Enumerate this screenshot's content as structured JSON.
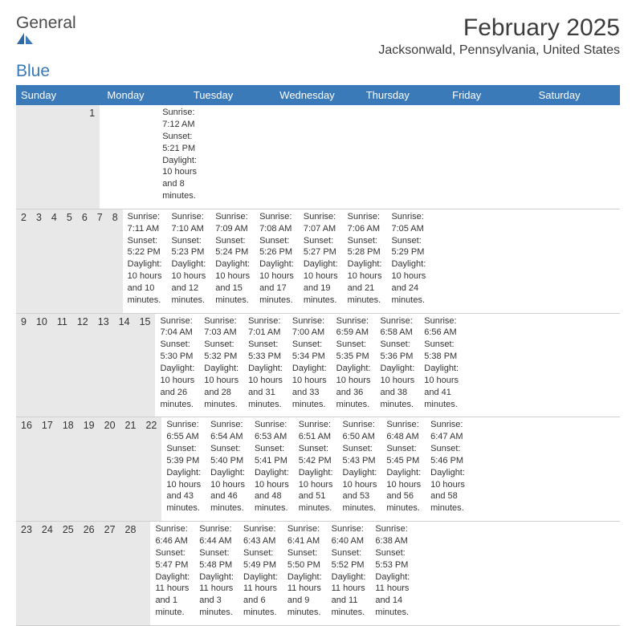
{
  "logo": {
    "text1": "General",
    "text2": "Blue"
  },
  "title": "February 2025",
  "location": "Jacksonwald, Pennsylvania, United States",
  "colors": {
    "header_bg": "#3a7ab8",
    "header_text": "#ffffff",
    "daynum_bg": "#e8e8e8",
    "border": "#cfcfcf",
    "text": "#333333",
    "logo_gray": "#4a4a4a",
    "logo_blue": "#3a7ab8"
  },
  "fonts": {
    "title_size_pt": 22,
    "location_size_pt": 12,
    "weekday_size_pt": 10,
    "daynum_size_pt": 9,
    "body_size_pt": 8
  },
  "weekdays": [
    "Sunday",
    "Monday",
    "Tuesday",
    "Wednesday",
    "Thursday",
    "Friday",
    "Saturday"
  ],
  "weeks": [
    [
      {
        "num": "",
        "lines": []
      },
      {
        "num": "",
        "lines": []
      },
      {
        "num": "",
        "lines": []
      },
      {
        "num": "",
        "lines": []
      },
      {
        "num": "",
        "lines": []
      },
      {
        "num": "",
        "lines": []
      },
      {
        "num": "1",
        "lines": [
          "Sunrise: 7:12 AM",
          "Sunset: 5:21 PM",
          "Daylight: 10 hours and 8 minutes."
        ]
      }
    ],
    [
      {
        "num": "2",
        "lines": [
          "Sunrise: 7:11 AM",
          "Sunset: 5:22 PM",
          "Daylight: 10 hours and 10 minutes."
        ]
      },
      {
        "num": "3",
        "lines": [
          "Sunrise: 7:10 AM",
          "Sunset: 5:23 PM",
          "Daylight: 10 hours and 12 minutes."
        ]
      },
      {
        "num": "4",
        "lines": [
          "Sunrise: 7:09 AM",
          "Sunset: 5:24 PM",
          "Daylight: 10 hours and 15 minutes."
        ]
      },
      {
        "num": "5",
        "lines": [
          "Sunrise: 7:08 AM",
          "Sunset: 5:26 PM",
          "Daylight: 10 hours and 17 minutes."
        ]
      },
      {
        "num": "6",
        "lines": [
          "Sunrise: 7:07 AM",
          "Sunset: 5:27 PM",
          "Daylight: 10 hours and 19 minutes."
        ]
      },
      {
        "num": "7",
        "lines": [
          "Sunrise: 7:06 AM",
          "Sunset: 5:28 PM",
          "Daylight: 10 hours and 21 minutes."
        ]
      },
      {
        "num": "8",
        "lines": [
          "Sunrise: 7:05 AM",
          "Sunset: 5:29 PM",
          "Daylight: 10 hours and 24 minutes."
        ]
      }
    ],
    [
      {
        "num": "9",
        "lines": [
          "Sunrise: 7:04 AM",
          "Sunset: 5:30 PM",
          "Daylight: 10 hours and 26 minutes."
        ]
      },
      {
        "num": "10",
        "lines": [
          "Sunrise: 7:03 AM",
          "Sunset: 5:32 PM",
          "Daylight: 10 hours and 28 minutes."
        ]
      },
      {
        "num": "11",
        "lines": [
          "Sunrise: 7:01 AM",
          "Sunset: 5:33 PM",
          "Daylight: 10 hours and 31 minutes."
        ]
      },
      {
        "num": "12",
        "lines": [
          "Sunrise: 7:00 AM",
          "Sunset: 5:34 PM",
          "Daylight: 10 hours and 33 minutes."
        ]
      },
      {
        "num": "13",
        "lines": [
          "Sunrise: 6:59 AM",
          "Sunset: 5:35 PM",
          "Daylight: 10 hours and 36 minutes."
        ]
      },
      {
        "num": "14",
        "lines": [
          "Sunrise: 6:58 AM",
          "Sunset: 5:36 PM",
          "Daylight: 10 hours and 38 minutes."
        ]
      },
      {
        "num": "15",
        "lines": [
          "Sunrise: 6:56 AM",
          "Sunset: 5:38 PM",
          "Daylight: 10 hours and 41 minutes."
        ]
      }
    ],
    [
      {
        "num": "16",
        "lines": [
          "Sunrise: 6:55 AM",
          "Sunset: 5:39 PM",
          "Daylight: 10 hours and 43 minutes."
        ]
      },
      {
        "num": "17",
        "lines": [
          "Sunrise: 6:54 AM",
          "Sunset: 5:40 PM",
          "Daylight: 10 hours and 46 minutes."
        ]
      },
      {
        "num": "18",
        "lines": [
          "Sunrise: 6:53 AM",
          "Sunset: 5:41 PM",
          "Daylight: 10 hours and 48 minutes."
        ]
      },
      {
        "num": "19",
        "lines": [
          "Sunrise: 6:51 AM",
          "Sunset: 5:42 PM",
          "Daylight: 10 hours and 51 minutes."
        ]
      },
      {
        "num": "20",
        "lines": [
          "Sunrise: 6:50 AM",
          "Sunset: 5:43 PM",
          "Daylight: 10 hours and 53 minutes."
        ]
      },
      {
        "num": "21",
        "lines": [
          "Sunrise: 6:48 AM",
          "Sunset: 5:45 PM",
          "Daylight: 10 hours and 56 minutes."
        ]
      },
      {
        "num": "22",
        "lines": [
          "Sunrise: 6:47 AM",
          "Sunset: 5:46 PM",
          "Daylight: 10 hours and 58 minutes."
        ]
      }
    ],
    [
      {
        "num": "23",
        "lines": [
          "Sunrise: 6:46 AM",
          "Sunset: 5:47 PM",
          "Daylight: 11 hours and 1 minute."
        ]
      },
      {
        "num": "24",
        "lines": [
          "Sunrise: 6:44 AM",
          "Sunset: 5:48 PM",
          "Daylight: 11 hours and 3 minutes."
        ]
      },
      {
        "num": "25",
        "lines": [
          "Sunrise: 6:43 AM",
          "Sunset: 5:49 PM",
          "Daylight: 11 hours and 6 minutes."
        ]
      },
      {
        "num": "26",
        "lines": [
          "Sunrise: 6:41 AM",
          "Sunset: 5:50 PM",
          "Daylight: 11 hours and 9 minutes."
        ]
      },
      {
        "num": "27",
        "lines": [
          "Sunrise: 6:40 AM",
          "Sunset: 5:52 PM",
          "Daylight: 11 hours and 11 minutes."
        ]
      },
      {
        "num": "28",
        "lines": [
          "Sunrise: 6:38 AM",
          "Sunset: 5:53 PM",
          "Daylight: 11 hours and 14 minutes."
        ]
      },
      {
        "num": "",
        "lines": []
      }
    ]
  ]
}
